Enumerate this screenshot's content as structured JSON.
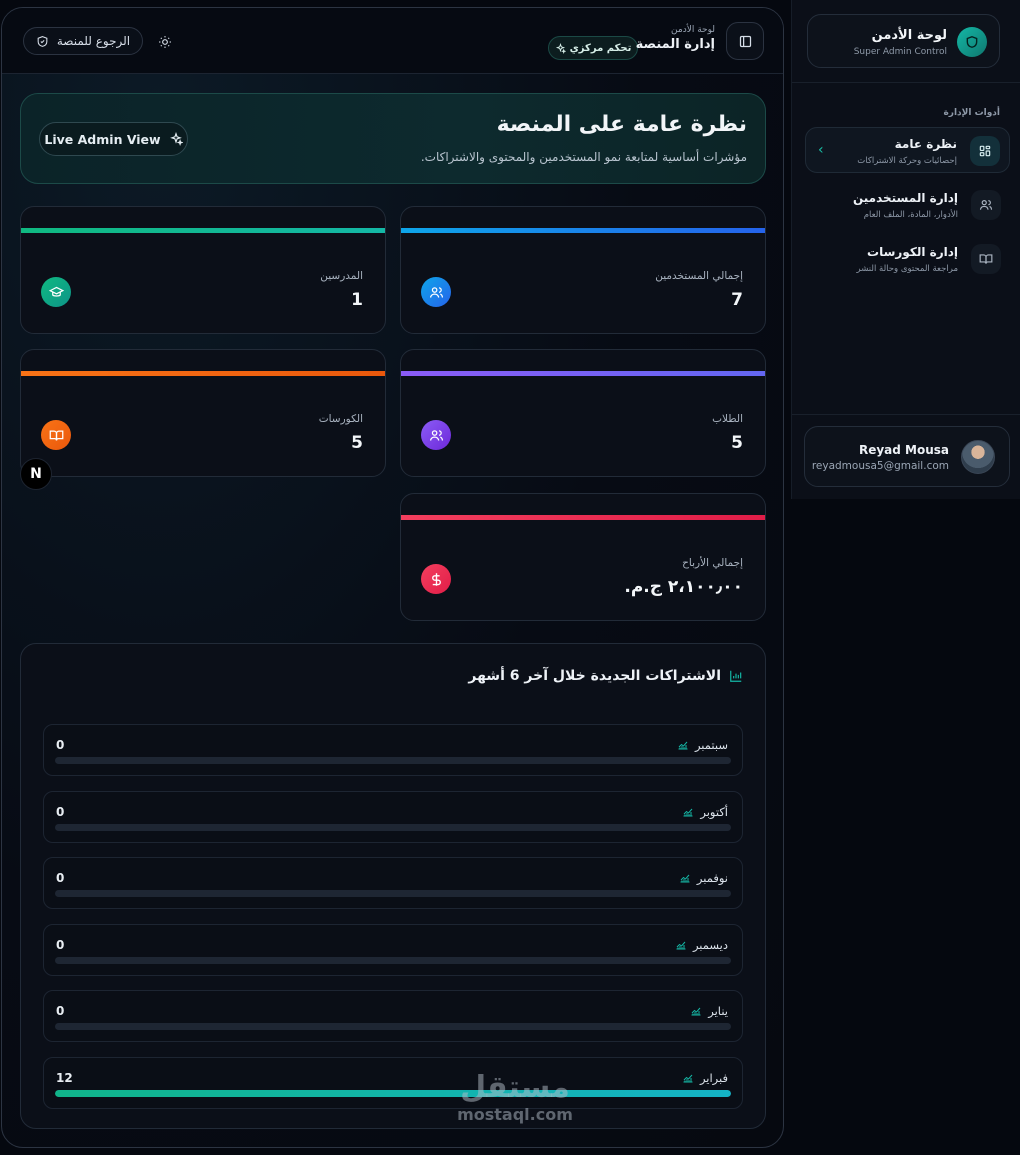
{
  "header": {
    "back_label": "الرجوع للمنصة",
    "title_small": "لوحة الأدمن",
    "title_main": "إدارة المنصة",
    "central_badge": "تحكم مركزي"
  },
  "hero": {
    "title": "نظرة عامة على المنصة",
    "subtitle": "مؤشرات أساسية لمتابعة نمو المستخدمين والمحتوى والاشتراكات.",
    "live_button": "Live Admin View"
  },
  "stats": [
    {
      "label": "إجمالي المستخدمين",
      "value": "7",
      "color": "#1e8bff",
      "icon": "users-icon"
    },
    {
      "label": "المدرسين",
      "value": "1",
      "color": "#10b981",
      "icon": "graduation-cap-icon"
    },
    {
      "label": "الطلاب",
      "value": "5",
      "color": "#8b5cf6",
      "icon": "students-icon"
    },
    {
      "label": "الكورسات",
      "value": "5",
      "color": "#f97316",
      "icon": "book-icon"
    },
    {
      "label": "إجمالي الأرباح",
      "value": "٢،١٠٠٫٠٠ ج.م.",
      "color": "#f43f5e",
      "icon": "dollar-icon"
    }
  ],
  "subscriptions": {
    "title": "الاشتراكات الجديدة خلال آخر 6 أشهر",
    "max": 12,
    "months": [
      {
        "name": "سبتمبر",
        "value": 0
      },
      {
        "name": "أكتوبر",
        "value": 0
      },
      {
        "name": "نوفمبر",
        "value": 0
      },
      {
        "name": "ديسمبر",
        "value": 0
      },
      {
        "name": "يناير",
        "value": 0
      },
      {
        "name": "فبراير",
        "value": 12
      }
    ]
  },
  "chart_data": {
    "type": "bar",
    "title": "الاشتراكات الجديدة خلال آخر 6 أشهر",
    "categories": [
      "سبتمبر",
      "أكتوبر",
      "نوفمبر",
      "ديسمبر",
      "يناير",
      "فبراير"
    ],
    "values": [
      0,
      0,
      0,
      0,
      0,
      12
    ]
  },
  "sidebar": {
    "brand_title": "لوحة الأدمن",
    "brand_sub": "Super Admin Control",
    "section_label": "أدوات الإدارة",
    "items": [
      {
        "title": "نظرة عامة",
        "sub": "إحصائيات وحركة الاشتراكات"
      },
      {
        "title": "إدارة المستخدمين",
        "sub": "الأدوار، المادة، الملف العام"
      },
      {
        "title": "إدارة الكورسات",
        "sub": "مراجعة المحتوى وحالة النشر"
      }
    ],
    "user_name": "Reyad Mousa",
    "user_email": "reyadmousa5@gmail.com"
  },
  "badge_letter": "N",
  "watermark": {
    "logo": "مستقل",
    "text": "mostaql.com"
  },
  "colors": {
    "accent": "#14b8a6",
    "background": "#05080f"
  }
}
